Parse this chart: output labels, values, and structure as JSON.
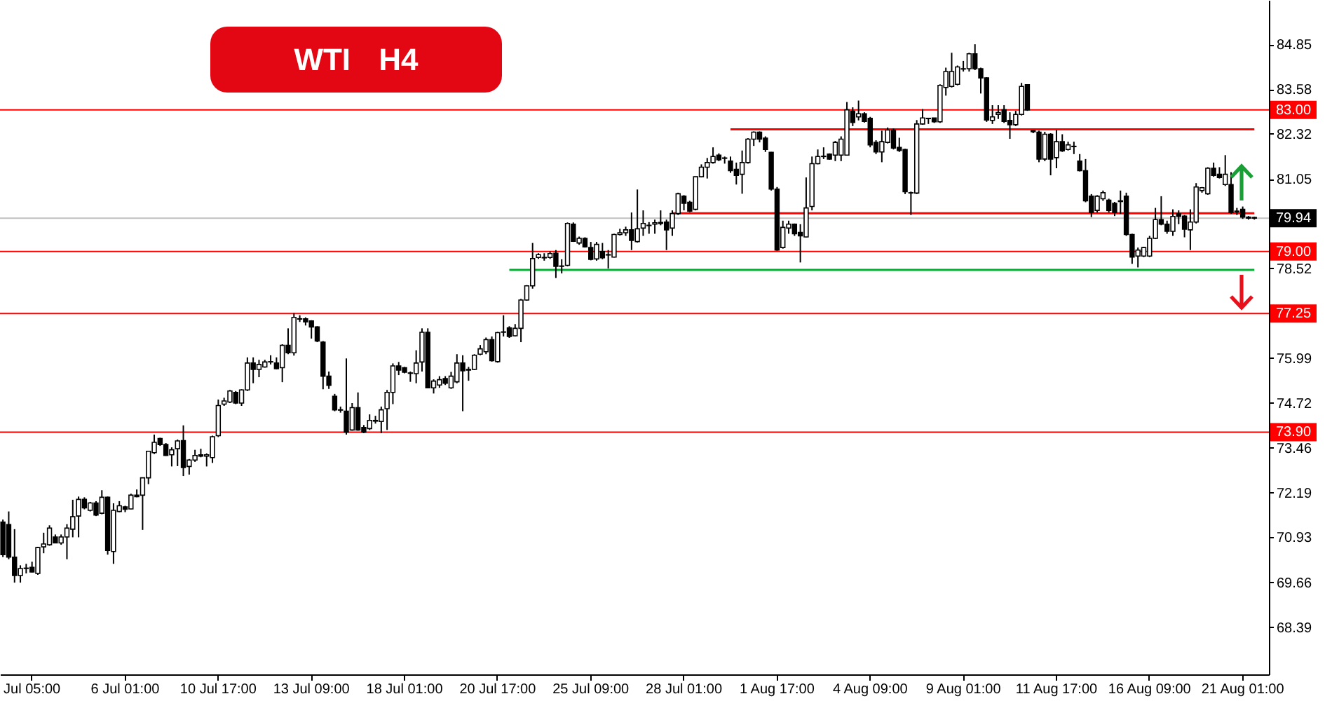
{
  "chart_data": {
    "type": "candlestick",
    "title": "WTI H4",
    "categories": [
      null,
      null,
      null,
      null,
      null,
      "Jul 05:00",
      null,
      null,
      null,
      null,
      null,
      null,
      null,
      null,
      null,
      null,
      null,
      null,
      null,
      null,
      null,
      "6 Jul 01:00",
      null,
      null,
      null,
      null,
      null,
      null,
      null,
      null,
      null,
      null,
      null,
      null,
      null,
      null,
      null,
      "10 Jul 17:00",
      null,
      null,
      null,
      null,
      null,
      null,
      null,
      null,
      null,
      null,
      null,
      null,
      null,
      null,
      null,
      "13 Jul 09:00",
      null,
      null,
      null,
      null,
      null,
      null,
      null,
      null,
      null,
      null,
      null,
      null,
      null,
      null,
      null,
      "18 Jul 01:00",
      null,
      null,
      null,
      null,
      null,
      null,
      null,
      null,
      null,
      null,
      null,
      null,
      null,
      null,
      null,
      "20 Jul 17:00",
      null,
      null,
      null,
      null,
      null,
      null,
      null,
      null,
      null,
      null,
      null,
      null,
      null,
      null,
      null,
      "25 Jul 09:00",
      null,
      null,
      null,
      null,
      null,
      null,
      null,
      null,
      null,
      null,
      null,
      null,
      null,
      null,
      null,
      "28 Jul 01:00",
      null,
      null,
      null,
      null,
      null,
      null,
      null,
      null,
      null,
      null,
      null,
      null,
      null,
      null,
      null,
      "1 Aug 17:00",
      null,
      null,
      null,
      null,
      null,
      null,
      null,
      null,
      null,
      null,
      null,
      null,
      null,
      null,
      null,
      "4 Aug 09:00",
      null,
      null,
      null,
      null,
      null,
      null,
      null,
      null,
      null,
      null,
      null,
      null,
      null,
      null,
      null,
      "9 Aug 01:00",
      null,
      null,
      null,
      null,
      null,
      null,
      null,
      null,
      null,
      null,
      null,
      null,
      null,
      null,
      null,
      "11 Aug 17:00",
      null,
      null,
      null,
      null,
      null,
      null,
      null,
      null,
      null,
      null,
      null,
      null,
      null,
      null,
      null,
      "16 Aug 09:00",
      null,
      null,
      null,
      null,
      null,
      null,
      null,
      null,
      null,
      null,
      null,
      null,
      null,
      null,
      null,
      "21 Aug 01:00",
      null,
      null
    ],
    "ohlc": [
      [
        71.36,
        71.43,
        70.37,
        70.44
      ],
      [
        71.29,
        71.66,
        70.31,
        70.37
      ],
      [
        70.37,
        71.16,
        69.65,
        69.85
      ],
      [
        69.85,
        70.14,
        69.65,
        70.05
      ],
      [
        70.05,
        70.18,
        69.91,
        70.06
      ],
      [
        70.08,
        70.24,
        69.94,
        69.95
      ],
      [
        69.91,
        70.66,
        69.87,
        70.64
      ],
      [
        70.66,
        71.06,
        70.48,
        70.74
      ],
      [
        70.72,
        71.27,
        70.69,
        71.19
      ],
      [
        70.94,
        71.01,
        70.77,
        70.77
      ],
      [
        70.77,
        71.01,
        70.72,
        70.94
      ],
      [
        70.94,
        71.3,
        70.31,
        71.19
      ],
      [
        71.16,
        71.99,
        70.93,
        71.51
      ],
      [
        71.53,
        72.08,
        70.93,
        72.0
      ],
      [
        72.0,
        72.06,
        71.72,
        71.76
      ],
      [
        71.69,
        71.93,
        71.66,
        71.9
      ],
      [
        71.9,
        71.95,
        71.53,
        71.56
      ],
      [
        71.61,
        72.26,
        71.58,
        72.06
      ],
      [
        72.06,
        72.08,
        70.44,
        70.56
      ],
      [
        70.53,
        71.89,
        70.18,
        71.69
      ],
      [
        71.66,
        71.95,
        71.64,
        71.82
      ],
      [
        71.79,
        71.82,
        71.64,
        71.72
      ],
      [
        71.73,
        72.16,
        71.72,
        72.12
      ],
      [
        72.12,
        72.28,
        72.06,
        72.08
      ],
      [
        72.12,
        72.61,
        71.14,
        72.61
      ],
      [
        72.61,
        73.37,
        72.43,
        73.36
      ],
      [
        73.32,
        73.83,
        73.28,
        73.61
      ],
      [
        73.72,
        73.74,
        73.51,
        73.55
      ],
      [
        73.55,
        73.59,
        73.23,
        73.24
      ],
      [
        73.26,
        73.47,
        72.93,
        73.4
      ],
      [
        73.43,
        73.69,
        72.94,
        73.65
      ],
      [
        73.66,
        74.09,
        72.66,
        72.9
      ],
      [
        72.93,
        73.14,
        72.7,
        73.11
      ],
      [
        73.11,
        73.4,
        73.06,
        73.24
      ],
      [
        73.26,
        73.43,
        73.19,
        73.22
      ],
      [
        73.22,
        73.3,
        72.93,
        73.26
      ],
      [
        73.18,
        73.8,
        73.03,
        73.77
      ],
      [
        73.8,
        74.82,
        73.76,
        74.65
      ],
      [
        74.69,
        74.87,
        74.64,
        74.78
      ],
      [
        74.75,
        75.09,
        74.72,
        75.06
      ],
      [
        75.02,
        75.06,
        74.69,
        74.72
      ],
      [
        74.72,
        75.11,
        74.64,
        75.09
      ],
      [
        75.09,
        76.01,
        75.06,
        75.85
      ],
      [
        75.85,
        76.01,
        75.28,
        75.67
      ],
      [
        75.67,
        75.94,
        75.45,
        75.81
      ],
      [
        75.74,
        75.94,
        75.72,
        75.88
      ],
      [
        75.88,
        76.07,
        75.81,
        75.89
      ],
      [
        75.85,
        76.01,
        75.67,
        75.69
      ],
      [
        75.72,
        76.38,
        75.31,
        76.35
      ],
      [
        76.35,
        76.83,
        76.1,
        76.14
      ],
      [
        76.14,
        77.26,
        76.06,
        77.14
      ],
      [
        77.1,
        77.2,
        77.01,
        77.09
      ],
      [
        77.1,
        77.14,
        76.91,
        77.01
      ],
      [
        77.04,
        77.06,
        76.54,
        76.87
      ],
      [
        76.87,
        76.89,
        76.44,
        76.47
      ],
      [
        76.44,
        76.47,
        75.11,
        75.48
      ],
      [
        75.48,
        75.61,
        75.12,
        75.22
      ],
      [
        74.91,
        74.98,
        74.49,
        74.53
      ],
      [
        74.53,
        74.62,
        74.45,
        74.52
      ],
      [
        74.49,
        75.98,
        73.83,
        73.9
      ],
      [
        73.96,
        74.72,
        73.94,
        74.59
      ],
      [
        74.59,
        75.02,
        73.94,
        73.96
      ],
      [
        74.03,
        74.1,
        73.87,
        73.9
      ],
      [
        74.0,
        74.4,
        73.96,
        74.23
      ],
      [
        74.23,
        74.36,
        74.14,
        74.21
      ],
      [
        74.2,
        74.62,
        73.87,
        74.53
      ],
      [
        74.56,
        75.09,
        73.96,
        75.02
      ],
      [
        75.02,
        75.84,
        74.69,
        75.77
      ],
      [
        75.77,
        75.88,
        75.51,
        75.65
      ],
      [
        75.72,
        75.74,
        75.56,
        75.59
      ],
      [
        75.57,
        75.61,
        75.32,
        75.56
      ],
      [
        75.55,
        76.21,
        75.28,
        75.85
      ],
      [
        75.88,
        76.83,
        75.61,
        76.72
      ],
      [
        76.72,
        76.83,
        75.15,
        75.15
      ],
      [
        75.15,
        75.39,
        74.99,
        75.34
      ],
      [
        75.23,
        75.48,
        75.15,
        75.38
      ],
      [
        75.41,
        75.48,
        75.23,
        75.28
      ],
      [
        75.15,
        75.6,
        75.12,
        75.48
      ],
      [
        75.32,
        76.1,
        75.28,
        75.85
      ],
      [
        75.85,
        76.07,
        74.49,
        75.63
      ],
      [
        75.65,
        75.74,
        75.35,
        75.67
      ],
      [
        75.67,
        76.1,
        75.65,
        76.07
      ],
      [
        76.1,
        76.36,
        76.07,
        76.25
      ],
      [
        76.17,
        76.57,
        76.1,
        76.51
      ],
      [
        76.51,
        76.6,
        75.89,
        75.92
      ],
      [
        75.89,
        76.73,
        75.86,
        76.71
      ],
      [
        76.73,
        77.2,
        76.6,
        76.72
      ],
      [
        76.84,
        76.89,
        76.56,
        76.6
      ],
      [
        76.62,
        76.95,
        76.6,
        76.83
      ],
      [
        76.83,
        77.66,
        76.44,
        77.63
      ],
      [
        77.63,
        78.05,
        77.61,
        78.03
      ],
      [
        78.03,
        79.24,
        77.95,
        78.8
      ],
      [
        78.83,
        78.95,
        78.79,
        78.91
      ],
      [
        78.82,
        78.95,
        78.74,
        78.83
      ],
      [
        78.83,
        79.0,
        78.79,
        78.94
      ],
      [
        78.95,
        79.04,
        78.25,
        78.58
      ],
      [
        78.58,
        78.78,
        78.38,
        78.59
      ],
      [
        78.61,
        79.82,
        78.58,
        79.79
      ],
      [
        79.77,
        79.82,
        79.27,
        79.29
      ],
      [
        79.24,
        79.42,
        79.19,
        79.37
      ],
      [
        79.37,
        79.4,
        79.11,
        79.13
      ],
      [
        79.11,
        79.27,
        78.75,
        78.78
      ],
      [
        78.79,
        79.27,
        78.74,
        79.2
      ],
      [
        79.0,
        79.24,
        78.78,
        78.82
      ],
      [
        78.91,
        79.04,
        78.52,
        78.9
      ],
      [
        78.84,
        79.5,
        78.83,
        79.48
      ],
      [
        79.48,
        79.64,
        79.45,
        79.53
      ],
      [
        79.53,
        79.7,
        79.44,
        79.61
      ],
      [
        79.61,
        80.1,
        79.04,
        79.31
      ],
      [
        79.28,
        80.75,
        79.25,
        79.64
      ],
      [
        79.66,
        80.16,
        79.44,
        79.79
      ],
      [
        79.74,
        79.83,
        79.5,
        79.73
      ],
      [
        79.77,
        79.9,
        79.5,
        79.81
      ],
      [
        79.79,
        80.16,
        79.74,
        79.82
      ],
      [
        79.83,
        79.9,
        79.04,
        79.61
      ],
      [
        79.66,
        80.16,
        79.44,
        80.07
      ],
      [
        80.07,
        80.66,
        80.03,
        80.63
      ],
      [
        80.56,
        80.59,
        80.16,
        80.36
      ],
      [
        80.39,
        80.43,
        80.11,
        80.14
      ],
      [
        80.19,
        81.11,
        80.16,
        81.11
      ],
      [
        81.11,
        81.46,
        81.09,
        81.38
      ],
      [
        81.38,
        81.64,
        81.06,
        81.51
      ],
      [
        81.51,
        81.94,
        81.48,
        81.68
      ],
      [
        81.72,
        81.77,
        81.55,
        81.59
      ],
      [
        81.64,
        81.68,
        81.48,
        81.63
      ],
      [
        81.55,
        81.68,
        81.22,
        81.28
      ],
      [
        81.32,
        81.51,
        80.89,
        81.15
      ],
      [
        81.18,
        81.85,
        80.63,
        81.51
      ],
      [
        81.51,
        82.2,
        81.48,
        82.17
      ],
      [
        82.17,
        82.39,
        81.98,
        82.37
      ],
      [
        82.37,
        82.39,
        82.08,
        82.17
      ],
      [
        82.2,
        82.25,
        81.81,
        81.88
      ],
      [
        81.8,
        81.81,
        80.72,
        80.76
      ],
      [
        80.76,
        80.82,
        79.02,
        79.04
      ],
      [
        79.11,
        79.87,
        79.08,
        79.68
      ],
      [
        79.66,
        79.87,
        79.5,
        79.77
      ],
      [
        79.77,
        79.79,
        79.44,
        79.5
      ],
      [
        79.54,
        79.77,
        78.69,
        79.44
      ],
      [
        79.41,
        81.09,
        79.4,
        80.23
      ],
      [
        80.27,
        81.68,
        80.16,
        81.48
      ],
      [
        81.48,
        81.88,
        81.46,
        81.68
      ],
      [
        81.68,
        81.94,
        81.61,
        81.69
      ],
      [
        81.75,
        81.77,
        81.59,
        81.61
      ],
      [
        81.72,
        82.12,
        81.55,
        82.08
      ],
      [
        81.72,
        82.25,
        81.55,
        82.17
      ],
      [
        81.72,
        83.22,
        81.71,
        83.0
      ],
      [
        82.96,
        83.07,
        82.54,
        82.64
      ],
      [
        82.8,
        83.26,
        82.7,
        82.89
      ],
      [
        82.89,
        82.93,
        82.64,
        82.67
      ],
      [
        82.76,
        82.8,
        81.94,
        82.01
      ],
      [
        82.08,
        82.14,
        81.75,
        81.81
      ],
      [
        81.81,
        82.41,
        81.52,
        82.1
      ],
      [
        82.08,
        82.5,
        82.05,
        82.43
      ],
      [
        82.43,
        82.47,
        81.88,
        81.92
      ],
      [
        81.94,
        82.21,
        81.81,
        81.85
      ],
      [
        81.88,
        81.9,
        80.62,
        80.69
      ],
      [
        80.65,
        80.69,
        80.03,
        80.66
      ],
      [
        80.65,
        82.71,
        80.62,
        82.6
      ],
      [
        82.6,
        83.02,
        82.58,
        82.77
      ],
      [
        82.76,
        82.76,
        82.6,
        82.75
      ],
      [
        82.77,
        82.77,
        82.63,
        82.66
      ],
      [
        82.66,
        83.72,
        82.63,
        83.69
      ],
      [
        83.63,
        84.19,
        83.4,
        84.08
      ],
      [
        83.66,
        84.61,
        83.63,
        84.08
      ],
      [
        83.72,
        84.25,
        83.69,
        84.21
      ],
      [
        84.16,
        84.38,
        84.08,
        84.15
      ],
      [
        84.16,
        84.61,
        84.08,
        84.58
      ],
      [
        84.58,
        84.85,
        84.12,
        84.16
      ],
      [
        84.16,
        84.19,
        83.46,
        83.9
      ],
      [
        83.9,
        83.92,
        82.66,
        82.71
      ],
      [
        82.7,
        83.13,
        82.6,
        82.8
      ],
      [
        82.87,
        83.13,
        82.74,
        82.92
      ],
      [
        83.0,
        83.13,
        82.63,
        82.67
      ],
      [
        82.7,
        82.93,
        82.18,
        82.58
      ],
      [
        82.58,
        82.97,
        82.54,
        82.87
      ],
      [
        82.87,
        83.76,
        82.84,
        83.66
      ],
      [
        83.71,
        83.71,
        82.97,
        83.0
      ],
      [
        82.41,
        82.43,
        82.34,
        82.38
      ],
      [
        82.37,
        82.41,
        81.52,
        81.61
      ],
      [
        81.61,
        82.38,
        81.55,
        82.31
      ],
      [
        82.31,
        82.34,
        81.15,
        81.61
      ],
      [
        81.65,
        82.43,
        81.35,
        82.1
      ],
      [
        82.1,
        82.31,
        81.81,
        81.84
      ],
      [
        81.88,
        82.1,
        81.85,
        82.01
      ],
      [
        81.97,
        82.1,
        81.75,
        81.96
      ],
      [
        81.55,
        81.75,
        81.26,
        81.28
      ],
      [
        81.28,
        81.61,
        80.39,
        80.43
      ],
      [
        80.56,
        80.62,
        79.97,
        80.1
      ],
      [
        80.16,
        80.59,
        80.1,
        80.56
      ],
      [
        80.49,
        80.72,
        80.43,
        80.66
      ],
      [
        80.45,
        80.49,
        80.1,
        80.16
      ],
      [
        80.36,
        80.4,
        80.0,
        80.1
      ],
      [
        80.43,
        80.72,
        80.06,
        80.41
      ],
      [
        80.56,
        80.66,
        79.44,
        79.48
      ],
      [
        79.48,
        79.5,
        78.65,
        78.84
      ],
      [
        78.87,
        79.11,
        78.55,
        79.04
      ],
      [
        78.87,
        79.13,
        78.84,
        79.11
      ],
      [
        78.87,
        79.44,
        78.84,
        79.37
      ],
      [
        79.37,
        80.23,
        79.35,
        79.9
      ],
      [
        79.9,
        80.56,
        79.74,
        79.77
      ],
      [
        79.77,
        79.87,
        79.5,
        79.57
      ],
      [
        79.57,
        80.19,
        79.44,
        79.99
      ],
      [
        80.06,
        80.16,
        79.77,
        79.99
      ],
      [
        80.0,
        80.03,
        79.4,
        79.63
      ],
      [
        79.61,
        80.19,
        79.04,
        79.83
      ],
      [
        79.83,
        80.93,
        79.79,
        80.82
      ],
      [
        80.72,
        80.82,
        80.66,
        80.8
      ],
      [
        80.63,
        81.38,
        80.6,
        81.35
      ],
      [
        81.35,
        81.51,
        81.11,
        81.15
      ],
      [
        81.18,
        81.38,
        81.06,
        81.09
      ],
      [
        80.89,
        81.72,
        80.85,
        81.18
      ],
      [
        80.89,
        81.24,
        80.06,
        80.1
      ],
      [
        80.14,
        80.23,
        80.03,
        80.12
      ],
      [
        80.19,
        80.27,
        79.92,
        79.97
      ],
      [
        79.97,
        80.0,
        79.9,
        79.94
      ],
      [
        79.96,
        79.98,
        79.9,
        79.94
      ]
    ],
    "color": "#000000",
    "colors": [
      "#000000",
      "#000000",
      "#000000",
      "#ffffff",
      "#ffffff",
      "#000000",
      "#ffffff",
      "#ffffff",
      "#ffffff",
      "#000000",
      "#ffffff",
      "#ffffff",
      "#ffffff",
      "#ffffff",
      "#000000",
      "#ffffff",
      "#000000",
      "#ffffff",
      "#000000",
      "#ffffff",
      "#ffffff",
      "#000000",
      "#ffffff",
      "#000000",
      "#ffffff",
      "#ffffff",
      "#ffffff",
      "#000000",
      "#000000",
      "#ffffff",
      "#ffffff",
      "#000000",
      "#ffffff",
      "#ffffff",
      "#000000",
      "#ffffff",
      "#ffffff",
      "#ffffff",
      "#ffffff",
      "#ffffff",
      "#000000",
      "#ffffff",
      "#ffffff",
      "#000000",
      "#ffffff",
      "#ffffff",
      "#ffffff",
      "#000000",
      "#ffffff",
      "#000000",
      "#ffffff",
      "#000000",
      "#000000",
      "#000000",
      "#000000",
      "#000000",
      "#000000",
      "#000000",
      "#000000",
      "#000000",
      "#ffffff",
      "#000000",
      "#000000",
      "#ffffff",
      "#000000",
      "#ffffff",
      "#ffffff",
      "#ffffff",
      "#000000",
      "#000000",
      "#000000",
      "#ffffff",
      "#ffffff",
      "#000000",
      "#ffffff",
      "#ffffff",
      "#000000",
      "#ffffff",
      "#ffffff",
      "#000000",
      "#ffffff",
      "#ffffff",
      "#ffffff",
      "#ffffff",
      "#000000",
      "#ffffff",
      "#000000",
      "#000000",
      "#ffffff",
      "#ffffff",
      "#ffffff",
      "#ffffff",
      "#ffffff",
      "#ffffff",
      "#ffffff",
      "#000000",
      "#ffffff",
      "#ffffff",
      "#000000",
      "#ffffff",
      "#000000",
      "#000000",
      "#ffffff",
      "#000000",
      "#000000",
      "#ffffff",
      "#ffffff",
      "#ffffff",
      "#000000",
      "#ffffff",
      "#ffffff",
      "#000000",
      "#ffffff",
      "#ffffff",
      "#000000",
      "#ffffff",
      "#ffffff",
      "#000000",
      "#000000",
      "#ffffff",
      "#ffffff",
      "#ffffff",
      "#ffffff",
      "#000000",
      "#000000",
      "#000000",
      "#000000",
      "#ffffff",
      "#ffffff",
      "#ffffff",
      "#000000",
      "#000000",
      "#000000",
      "#000000",
      "#ffffff",
      "#ffffff",
      "#000000",
      "#000000",
      "#ffffff",
      "#ffffff",
      "#ffffff",
      "#ffffff",
      "#000000",
      "#ffffff",
      "#ffffff",
      "#ffffff",
      "#000000",
      "#ffffff",
      "#000000",
      "#000000",
      "#000000",
      "#ffffff",
      "#ffffff",
      "#000000",
      "#000000",
      "#000000",
      "#ffffff",
      "#ffffff",
      "#ffffff",
      "#000000",
      "#000000",
      "#ffffff",
      "#ffffff",
      "#ffffff",
      "#ffffff",
      "#000000",
      "#ffffff",
      "#000000",
      "#000000",
      "#000000",
      "#ffffff",
      "#ffffff",
      "#000000",
      "#000000",
      "#ffffff",
      "#ffffff",
      "#000000",
      "#000000",
      "#000000",
      "#ffffff",
      "#000000",
      "#ffffff",
      "#000000",
      "#ffffff",
      "#000000",
      "#000000",
      "#000000",
      "#000000",
      "#ffffff",
      "#ffffff",
      "#000000",
      "#000000",
      "#000000",
      "#000000",
      "#000000",
      "#ffffff",
      "#ffffff",
      "#ffffff",
      "#ffffff",
      "#000000",
      "#000000",
      "#ffffff",
      "#000000",
      "#000000",
      "#ffffff",
      "#ffffff",
      "#ffffff",
      "#ffffff",
      "#000000",
      "#000000",
      "#ffffff",
      "#000000",
      "#000000",
      "#000000",
      "#000000",
      "#000000"
    ],
    "ylim": [
      67.06,
      86.1
    ],
    "yticks": [
      84.85,
      83.58,
      82.32,
      81.05,
      78.52,
      75.99,
      74.72,
      73.46,
      72.19,
      70.93,
      69.66,
      68.39
    ],
    "ref_lines": [
      {
        "axis": "y",
        "value": 83.0,
        "label": "83.00",
        "color": "#ff0000"
      },
      {
        "axis": "y",
        "value": 79.94,
        "label": "79.94",
        "color": "#c0c0c0"
      },
      {
        "axis": "y",
        "value": 79.0,
        "label": "79.00",
        "color": "#ff0000"
      },
      {
        "axis": "y",
        "value": 77.25,
        "label": "77.25",
        "color": "#ff0000"
      },
      {
        "axis": "y",
        "value": 73.9,
        "label": "73.90",
        "color": "#ff0000"
      }
    ],
    "series": [
      {
        "type": "line",
        "color": "#00b030",
        "values": [
          null,
          null,
          null,
          null,
          null,
          null,
          null,
          null,
          null,
          null,
          null,
          null,
          null,
          null,
          null,
          null,
          null,
          null,
          null,
          null,
          null,
          null,
          null,
          null,
          null,
          null,
          null,
          null,
          null,
          null,
          null,
          null,
          null,
          null,
          null,
          null,
          null,
          null,
          null,
          null,
          null,
          null,
          null,
          null,
          null,
          null,
          null,
          null,
          null,
          null,
          null,
          null,
          null,
          null,
          null,
          null,
          null,
          null,
          null,
          null,
          null,
          null,
          null,
          null,
          null,
          null,
          null,
          null,
          null,
          null,
          null,
          null,
          null,
          null,
          null,
          null,
          null,
          null,
          null,
          null,
          null,
          null,
          null,
          null,
          null,
          null,
          null,
          78.48,
          78.48,
          78.48,
          78.48,
          78.48,
          78.48,
          78.48,
          78.48,
          78.48,
          78.48,
          78.48,
          78.48,
          78.48,
          78.48,
          78.48,
          78.48,
          78.48,
          78.48,
          78.48,
          78.48,
          78.48,
          78.48,
          78.48,
          78.48,
          78.48,
          78.48,
          78.48,
          78.48,
          78.48,
          78.48,
          78.48,
          78.48,
          78.48,
          78.48,
          78.48,
          78.48,
          78.48,
          78.48,
          78.48,
          78.48,
          78.48,
          78.48,
          78.48,
          78.48,
          78.48,
          78.48,
          78.48,
          78.48,
          78.48,
          78.48,
          78.48,
          78.48,
          78.48,
          78.48,
          78.48,
          78.48,
          78.48,
          78.48,
          78.48,
          78.48,
          78.48,
          78.48,
          78.48,
          78.48,
          78.48,
          78.48,
          78.48,
          78.48,
          78.48,
          78.48,
          78.48,
          78.48,
          78.48,
          78.48,
          78.48,
          78.48,
          78.48,
          78.48,
          78.48,
          78.48,
          78.48,
          78.48,
          78.48,
          78.48,
          78.48,
          78.48,
          78.48,
          78.48,
          78.48,
          78.48,
          78.48,
          78.48,
          78.48,
          78.48,
          78.48,
          78.48,
          78.48,
          78.48,
          78.48,
          78.48,
          78.48,
          78.48,
          78.48,
          78.48,
          78.48,
          78.48,
          78.48,
          78.48,
          78.48,
          78.48,
          78.48,
          78.48,
          78.48,
          78.48,
          78.48,
          78.48,
          78.48,
          78.48,
          78.48,
          78.48,
          78.48,
          78.48,
          78.48,
          78.48,
          78.48,
          78.48,
          78.48,
          78.48,
          78.48
        ]
      },
      {
        "type": "line",
        "color": "#ff0000",
        "values": [
          null,
          null,
          null,
          null,
          null,
          null,
          null,
          null,
          null,
          null,
          null,
          null,
          null,
          null,
          null,
          null,
          null,
          null,
          null,
          null,
          null,
          null,
          null,
          null,
          null,
          null,
          null,
          null,
          null,
          null,
          null,
          null,
          null,
          null,
          null,
          null,
          null,
          null,
          null,
          null,
          null,
          null,
          null,
          null,
          null,
          null,
          null,
          null,
          null,
          null,
          null,
          null,
          null,
          null,
          null,
          null,
          null,
          null,
          null,
          null,
          null,
          null,
          null,
          null,
          null,
          null,
          null,
          null,
          null,
          null,
          null,
          null,
          null,
          null,
          null,
          null,
          null,
          null,
          null,
          null,
          null,
          null,
          null,
          null,
          null,
          null,
          null,
          null,
          null,
          null,
          null,
          null,
          null,
          null,
          null,
          null,
          null,
          null,
          null,
          null,
          null,
          null,
          null,
          null,
          null,
          null,
          null,
          null,
          null,
          null,
          null,
          null,
          null,
          null,
          null,
          80.08,
          80.08,
          80.08,
          80.08,
          80.08,
          80.08,
          80.08,
          80.08,
          80.08,
          80.08,
          80.08,
          80.08,
          80.08,
          80.08,
          80.08,
          80.08,
          80.08,
          80.08,
          80.08,
          80.08,
          80.08,
          80.08,
          80.08,
          80.08,
          80.08,
          80.08,
          80.08,
          80.08,
          80.08,
          80.08,
          80.08,
          80.08,
          80.08,
          80.08,
          80.08,
          80.08,
          80.08,
          80.08,
          80.08,
          80.08,
          80.08,
          80.08,
          80.08,
          80.08,
          80.08,
          80.08,
          80.08,
          80.08,
          80.08,
          80.08,
          80.08,
          80.08,
          80.08,
          80.08,
          80.08,
          80.08,
          80.08,
          80.08,
          80.08,
          80.08,
          80.08,
          80.08,
          80.08,
          80.08,
          80.08,
          80.08,
          80.08,
          80.08,
          80.08,
          80.08,
          80.08,
          80.08,
          80.08,
          80.08,
          80.08,
          80.08,
          80.08,
          80.08,
          80.08,
          80.08,
          80.08,
          80.08,
          80.08,
          80.08,
          80.08,
          80.08,
          80.08,
          80.08,
          80.08,
          80.08,
          80.08,
          80.08,
          80.08,
          80.08,
          80.08,
          80.08,
          80.08,
          80.08,
          80.08,
          80.08,
          80.08
        ]
      },
      {
        "type": "line",
        "color": "#ff0000",
        "values": [
          null,
          null,
          null,
          null,
          null,
          null,
          null,
          null,
          null,
          null,
          null,
          null,
          null,
          null,
          null,
          null,
          null,
          null,
          null,
          null,
          null,
          null,
          null,
          null,
          null,
          null,
          null,
          null,
          null,
          null,
          null,
          null,
          null,
          null,
          null,
          null,
          null,
          null,
          null,
          null,
          null,
          null,
          null,
          null,
          null,
          null,
          null,
          null,
          null,
          null,
          null,
          null,
          null,
          null,
          null,
          null,
          null,
          null,
          null,
          null,
          null,
          null,
          null,
          null,
          null,
          null,
          null,
          null,
          null,
          null,
          null,
          null,
          null,
          null,
          null,
          null,
          null,
          null,
          null,
          null,
          null,
          null,
          null,
          null,
          null,
          null,
          null,
          null,
          null,
          null,
          null,
          null,
          null,
          null,
          null,
          null,
          null,
          null,
          null,
          null,
          null,
          null,
          null,
          null,
          null,
          null,
          null,
          null,
          null,
          null,
          null,
          null,
          null,
          null,
          null,
          null,
          null,
          null,
          null,
          null,
          null,
          null,
          null,
          null,
          null,
          82.45,
          82.45,
          82.45,
          82.45,
          82.45,
          82.45,
          82.45,
          82.45,
          82.45,
          82.45,
          82.45,
          82.45,
          82.45,
          82.45,
          82.45,
          82.45,
          82.45,
          82.45,
          82.45,
          82.45,
          82.45,
          82.45,
          82.45,
          82.45,
          82.45,
          82.45,
          82.45,
          82.45,
          82.45,
          82.45,
          82.45,
          82.45,
          82.45,
          82.45,
          82.45,
          82.45,
          82.45,
          82.45,
          82.45,
          82.45,
          82.45,
          82.45,
          82.45,
          82.45,
          82.45,
          82.45,
          82.45,
          82.45,
          82.45,
          82.45,
          82.45,
          82.45,
          82.45,
          82.45,
          82.45,
          82.45,
          82.45,
          82.45,
          82.45,
          82.45,
          82.45,
          82.45,
          82.45,
          82.45,
          82.45,
          82.45,
          82.45,
          82.45,
          82.45,
          82.45,
          82.45,
          82.45,
          82.45,
          82.45,
          82.45,
          82.45,
          82.45,
          82.45,
          82.45,
          82.45,
          82.45,
          82.45,
          82.45,
          82.45,
          82.45,
          82.45,
          82.45,
          82.45,
          82.45,
          82.45,
          82.45
        ]
      }
    ]
  }
}
